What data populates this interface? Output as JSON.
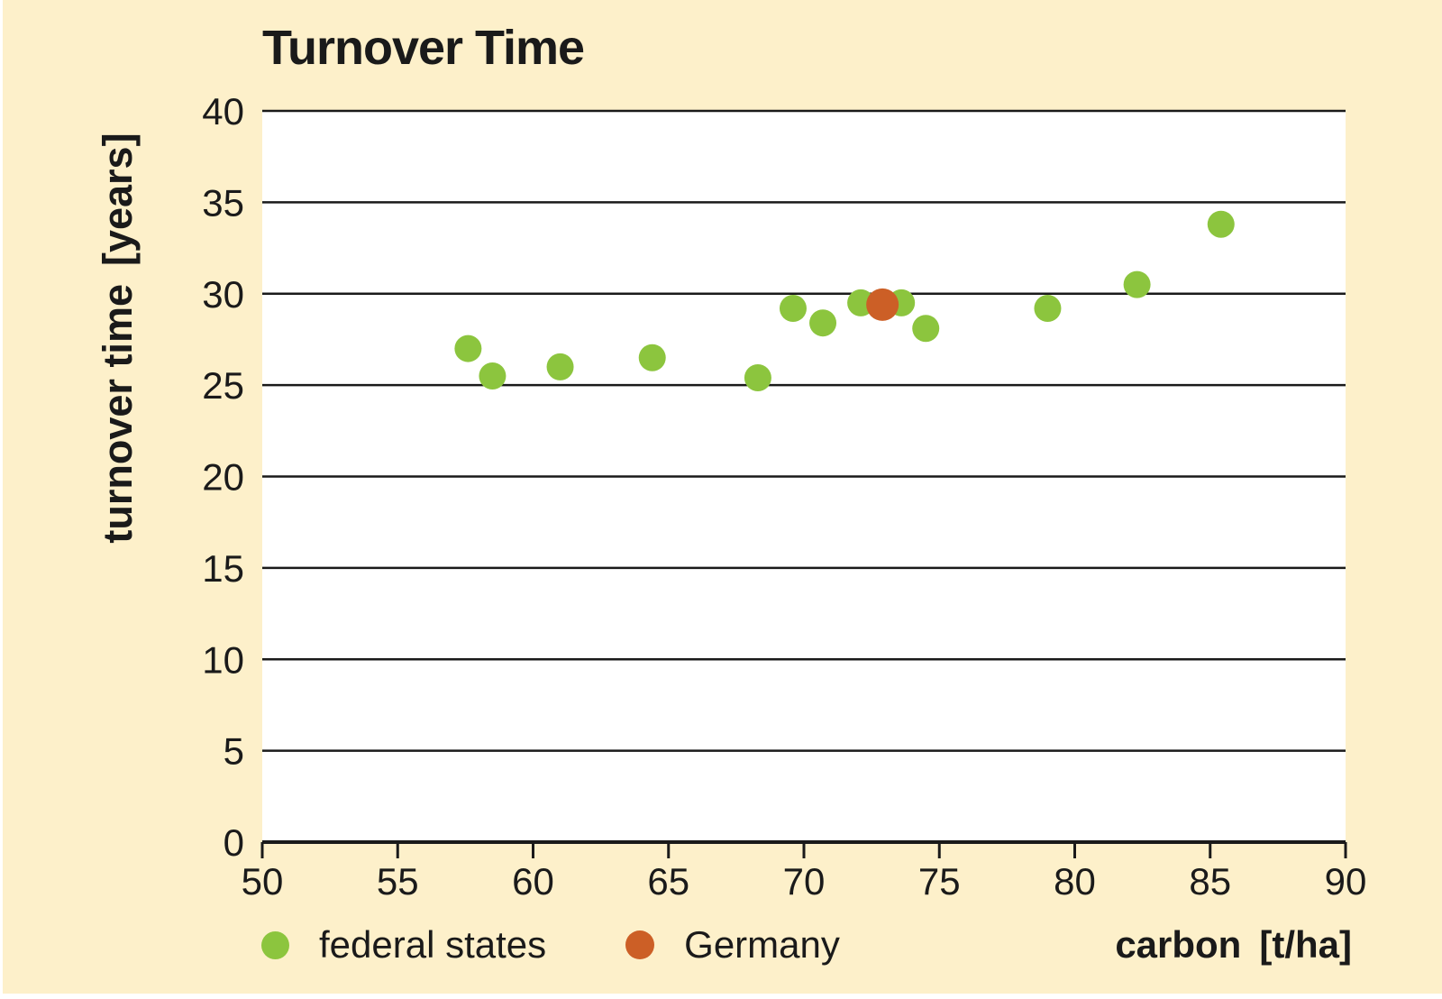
{
  "figure": {
    "title": "Turnover Time",
    "background_color": "#FDF0CA",
    "plot_background_color": "#FFFFFF",
    "line_color": "#1A1A1A"
  },
  "axes": {
    "y_title": "turnover time",
    "y_unit": "[years]",
    "x_title": "carbon",
    "x_unit": "[t/ha]"
  },
  "legend": {
    "items": [
      {
        "label": "federal states",
        "color": "#8CC53E"
      },
      {
        "label": "Germany",
        "color": "#CC5F26"
      }
    ]
  },
  "chart_data": {
    "type": "scatter",
    "title": "Turnover Time",
    "xlabel": "carbon [t/ha]",
    "ylabel": "turnover time [years]",
    "xlim": [
      50,
      90
    ],
    "ylim": [
      0,
      40
    ],
    "x_ticks": [
      50,
      55,
      60,
      65,
      70,
      75,
      80,
      85,
      90
    ],
    "y_ticks": [
      0,
      5,
      10,
      15,
      20,
      25,
      30,
      35,
      40
    ],
    "grid": "horizontal-only",
    "legend_position": "bottom",
    "series": [
      {
        "name": "federal states",
        "color": "#8CC53E",
        "marker_radius": 15,
        "points": [
          [
            57.6,
            27.0
          ],
          [
            58.5,
            25.5
          ],
          [
            61.0,
            26.0
          ],
          [
            64.4,
            26.5
          ],
          [
            68.3,
            25.4
          ],
          [
            69.6,
            29.2
          ],
          [
            70.7,
            28.4
          ],
          [
            72.1,
            29.5
          ],
          [
            73.6,
            29.5
          ],
          [
            74.5,
            28.1
          ],
          [
            79.0,
            29.2
          ],
          [
            82.3,
            30.5
          ],
          [
            85.4,
            33.8
          ]
        ]
      },
      {
        "name": "Germany",
        "color": "#CC5F26",
        "marker_radius": 18,
        "points": [
          [
            72.9,
            29.4
          ]
        ]
      }
    ]
  }
}
